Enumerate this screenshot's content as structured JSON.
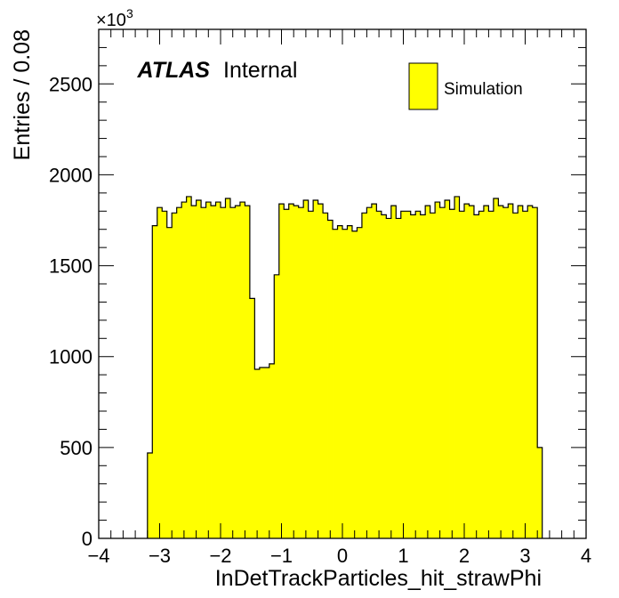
{
  "chart_data": {
    "type": "bar",
    "style": "histogram",
    "xlabel": "InDetTrackParticles_hit_strawPhi",
    "ylabel": "Entries / 0.08",
    "y_multiplier": "×10",
    "y_multiplier_exp": "3",
    "xlim": [
      -4,
      4
    ],
    "ylim": [
      0,
      2800
    ],
    "x_ticks": [
      -4,
      -3,
      -2,
      -1,
      0,
      1,
      2,
      3,
      4
    ],
    "x_tick_labels": [
      "−4",
      "−3",
      "−2",
      "−1",
      "0",
      "1",
      "2",
      "3",
      "4"
    ],
    "y_ticks": [
      0,
      500,
      1000,
      1500,
      2000,
      2500
    ],
    "y_tick_labels": [
      "0",
      "500",
      "1000",
      "1500",
      "2000",
      "2500"
    ],
    "bin_start": -3.2,
    "bin_width": 0.08,
    "series": [
      {
        "name": "Simulation",
        "color": "#ffff00",
        "edge_color": "#000000",
        "values": [
          470,
          1720,
          1820,
          1800,
          1710,
          1790,
          1820,
          1850,
          1880,
          1830,
          1860,
          1820,
          1850,
          1830,
          1850,
          1820,
          1870,
          1820,
          1830,
          1850,
          1830,
          1320,
          930,
          940,
          940,
          960,
          1450,
          1840,
          1810,
          1840,
          1830,
          1820,
          1860,
          1800,
          1860,
          1840,
          1790,
          1750,
          1700,
          1720,
          1700,
          1720,
          1690,
          1710,
          1790,
          1820,
          1840,
          1800,
          1780,
          1760,
          1830,
          1760,
          1800,
          1800,
          1780,
          1800,
          1780,
          1830,
          1790,
          1850,
          1820,
          1860,
          1810,
          1880,
          1800,
          1840,
          1830,
          1780,
          1800,
          1830,
          1800,
          1870,
          1830,
          1820,
          1840,
          1790,
          1830,
          1800,
          1830,
          1820,
          500
        ]
      }
    ],
    "legend": {
      "position": "top-right",
      "entries": [
        "Simulation"
      ]
    },
    "annotations": {
      "atlas": "ATLAS",
      "status": "Internal"
    },
    "grid": false
  }
}
